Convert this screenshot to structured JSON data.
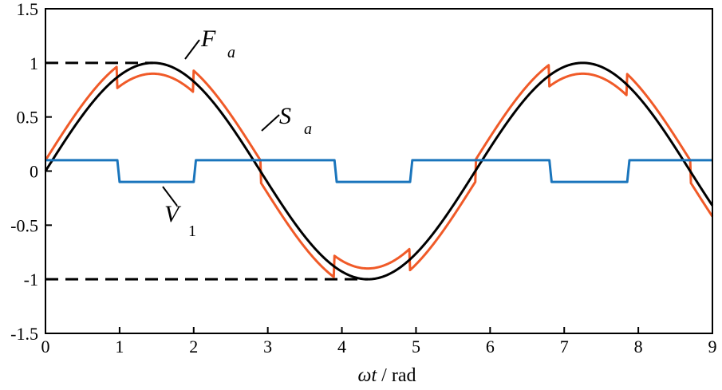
{
  "chart_data": {
    "type": "line",
    "xlabel": "ωt / rad",
    "xlabel_parts": {
      "symbol": "ωt",
      "unit": "/ rad"
    },
    "ylabel": "",
    "xlim": [
      0,
      9
    ],
    "ylim": [
      -1.5,
      1.5
    ],
    "x_ticks": [
      0,
      1,
      2,
      3,
      4,
      5,
      6,
      7,
      8,
      9
    ],
    "y_ticks": [
      -1.5,
      -1,
      -0.5,
      0,
      0.5,
      1,
      1.5
    ],
    "x_tick_labels": [
      "0",
      "1",
      "2",
      "3",
      "4",
      "5",
      "6",
      "7",
      "8",
      "9"
    ],
    "y_tick_labels": [
      "-1.5",
      "-1",
      "-0.5",
      "0",
      "0.5",
      "1",
      "1.5"
    ],
    "grid": false,
    "legend": "none",
    "series": [
      {
        "name": "Sa",
        "label_main": "S",
        "label_sub": "a",
        "color": "#000000",
        "kind": "sine",
        "amplitude": 1.0,
        "period": 5.8,
        "x": [
          0,
          0.5,
          1.0,
          1.45,
          2.0,
          2.5,
          3.0,
          3.5,
          4.0,
          4.35,
          5.0,
          5.5,
          6.0,
          6.5,
          7.0,
          7.25,
          7.5,
          8.0,
          8.5,
          9.0
        ],
        "y": [
          0.0,
          0.51,
          0.88,
          1.0,
          0.89,
          0.53,
          0.04,
          -0.48,
          -0.86,
          -1.0,
          -0.84,
          -0.45,
          0.11,
          0.6,
          0.93,
          1.0,
          0.98,
          0.79,
          0.41,
          -0.11
        ]
      },
      {
        "name": "Fa",
        "label_main": "F",
        "label_sub": "a",
        "color": "#f05a28",
        "kind": "sine_plus_square",
        "note": "",
        "x": [
          0,
          0.5,
          0.99,
          1.01,
          1.45,
          2.04,
          2.06,
          2.5,
          3.0,
          3.5,
          3.99,
          4.01,
          4.35,
          4.94,
          4.96,
          5.5,
          6.0,
          6.5,
          6.79,
          6.81,
          7.25,
          7.84,
          7.86,
          8.5,
          9.0
        ],
        "y": [
          0.1,
          0.61,
          0.97,
          0.77,
          0.9,
          0.78,
          0.94,
          0.63,
          0.14,
          -0.58,
          -0.96,
          -0.76,
          -0.9,
          -0.78,
          -0.94,
          -0.55,
          0.21,
          0.7,
          0.96,
          0.77,
          0.9,
          0.77,
          0.95,
          0.31,
          -0.21
        ]
      },
      {
        "name": "V1",
        "label_main": "V",
        "label_sub": "1",
        "color": "#1a75bc",
        "kind": "square",
        "amplitude": 0.1,
        "transitions": [
          0,
          0.97,
          2.0,
          3.9,
          4.92,
          6.8,
          7.85
        ],
        "x": [
          0,
          0.97,
          1.0,
          2.0,
          2.03,
          3.9,
          3.93,
          4.92,
          4.95,
          6.8,
          6.83,
          7.85,
          7.88,
          9.0
        ],
        "y": [
          0.1,
          0.1,
          -0.1,
          -0.1,
          0.1,
          0.1,
          -0.1,
          -0.1,
          0.1,
          0.1,
          -0.1,
          -0.1,
          0.1,
          0.1
        ]
      }
    ],
    "reference_lines": [
      {
        "y": 1,
        "x_from": 0,
        "x_to": 1.45,
        "style": "dashed",
        "color": "#000000"
      },
      {
        "y": -1,
        "x_from": 0,
        "x_to": 4.35,
        "style": "dashed",
        "color": "#000000"
      }
    ]
  }
}
